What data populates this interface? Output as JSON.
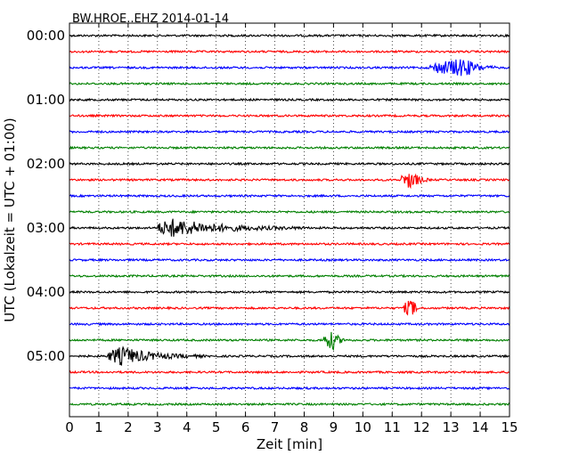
{
  "chart_data": {
    "type": "line",
    "title": "BW.HROE..EHZ 2014-01-14",
    "xlabel": "Zeit  [min]",
    "ylabel": "UTC (Lokalzeit = UTC + 01:00)",
    "xlim": [
      0,
      15
    ],
    "x_ticks": [
      0,
      1,
      2,
      3,
      4,
      5,
      6,
      7,
      8,
      9,
      10,
      11,
      12,
      13,
      14,
      15
    ],
    "y_tick_labels": [
      "00:00",
      "01:00",
      "02:00",
      "03:00",
      "04:00",
      "05:00"
    ],
    "trace_interval_minutes": 15,
    "grid": "vertical dotted at each minute",
    "trace_colors": [
      "#000000",
      "#ff0000",
      "#0000ff",
      "#008000"
    ],
    "trace_count": 24,
    "events": [
      {
        "trace": 2,
        "start_min": 12.3,
        "end_min": 14.6,
        "peak_min": 13.5,
        "label_time": "00:30"
      },
      {
        "trace": 9,
        "start_min": 11.3,
        "end_min": 12.3,
        "peak_min": 11.7,
        "label_time": "02:15"
      },
      {
        "trace": 12,
        "start_min": 3.0,
        "end_min": 8.0,
        "peak_min": 3.5,
        "label_time": "03:00"
      },
      {
        "trace": 17,
        "start_min": 11.4,
        "end_min": 12.0,
        "peak_min": 11.7,
        "label_time": "04:15"
      },
      {
        "trace": 19,
        "start_min": 8.6,
        "end_min": 9.5,
        "peak_min": 9.0,
        "label_time": "04:45"
      },
      {
        "trace": 20,
        "start_min": 1.3,
        "end_min": 4.6,
        "peak_min": 1.8,
        "label_time": "05:00"
      }
    ]
  }
}
